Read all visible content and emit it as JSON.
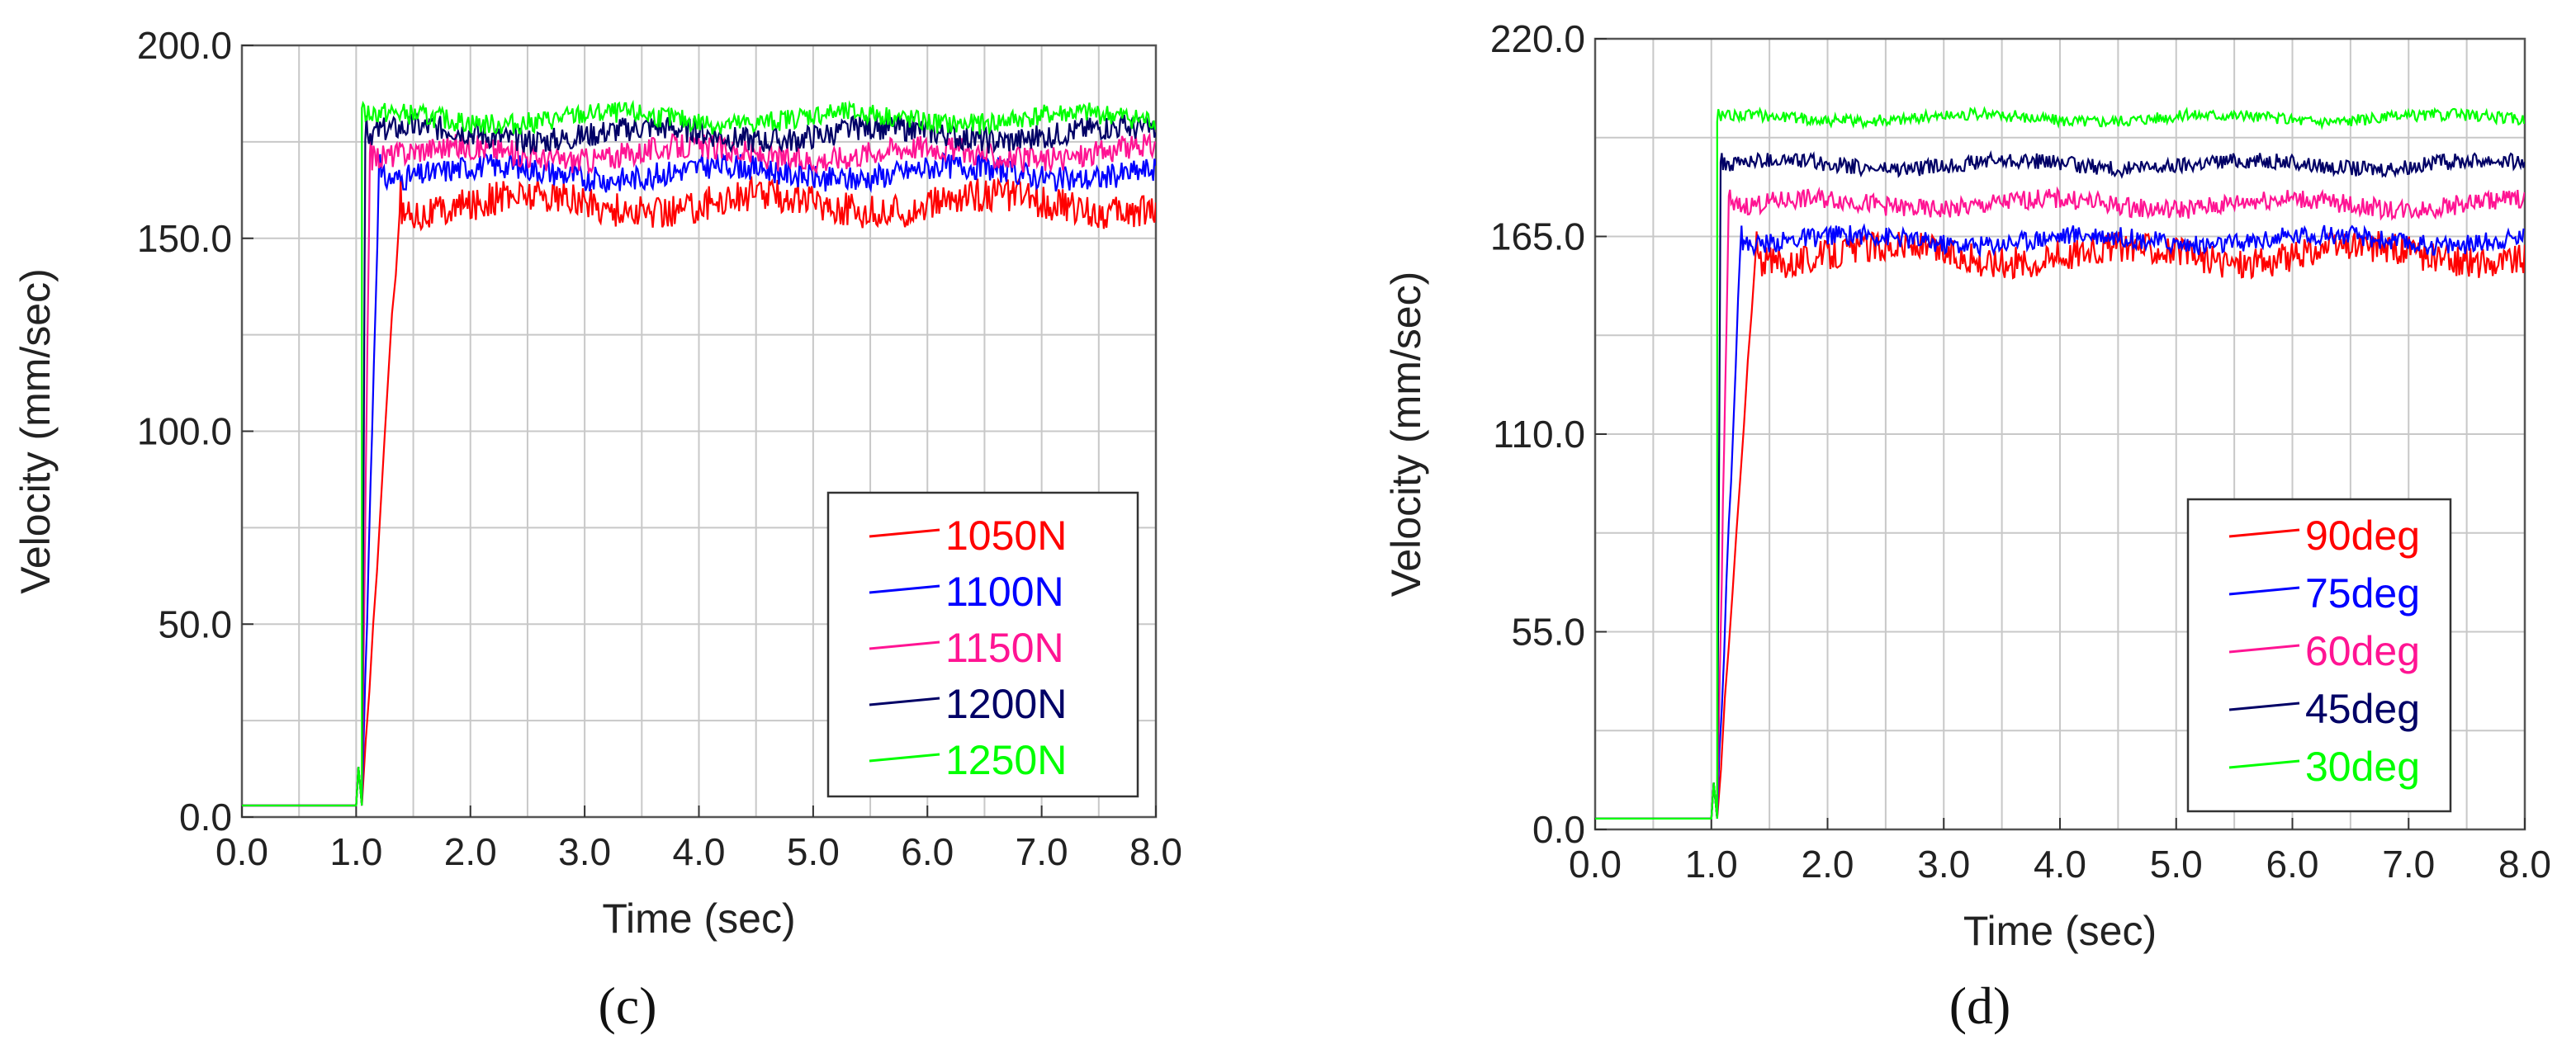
{
  "chart_data": [
    {
      "type": "line",
      "panel_label": "(c)",
      "title": "",
      "xlabel": "Time (sec)",
      "ylabel": "Velocity (mm/sec)",
      "xlim": [
        0,
        8
      ],
      "ylim": [
        0,
        200
      ],
      "xticks": [
        "0.0",
        "1.0",
        "2.0",
        "3.0",
        "4.0",
        "5.0",
        "6.0",
        "7.0",
        "8.0"
      ],
      "yticks": [
        "0.0",
        "50.0",
        "100.0",
        "150.0",
        "200.0"
      ],
      "grid": true,
      "legend_position": "bottom-right",
      "series": [
        {
          "name": "1050N",
          "color": "#ff0000",
          "start": 1.0,
          "rise_end": 1.38,
          "steady": 159,
          "noise": 4.0
        },
        {
          "name": "1100N",
          "color": "#0000ff",
          "start": 1.0,
          "rise_end": 1.2,
          "steady": 167,
          "noise": 3.0
        },
        {
          "name": "1150N",
          "color": "#ff1493",
          "start": 1.0,
          "rise_end": 1.12,
          "steady": 172,
          "noise": 3.0
        },
        {
          "name": "1200N",
          "color": "#000066",
          "start": 1.0,
          "rise_end": 1.08,
          "steady": 177,
          "noise": 3.0
        },
        {
          "name": "1250N",
          "color": "#00ff00",
          "start": 1.0,
          "rise_end": 1.05,
          "steady": 181,
          "noise": 2.5
        }
      ]
    },
    {
      "type": "line",
      "panel_label": "(d)",
      "title": "",
      "xlabel": "Time (sec)",
      "ylabel": "Velocity (mm/sec)",
      "xlim": [
        0,
        8
      ],
      "ylim": [
        0,
        220
      ],
      "xticks": [
        "0.0",
        "1.0",
        "2.0",
        "3.0",
        "4.0",
        "5.0",
        "6.0",
        "7.0",
        "8.0"
      ],
      "yticks": [
        "0.0",
        "55.0",
        "110.0",
        "165.0",
        "220.0"
      ],
      "grid": true,
      "legend_position": "bottom-right",
      "series": [
        {
          "name": "90deg",
          "color": "#ff0000",
          "start": 1.0,
          "rise_end": 1.38,
          "steady": 160,
          "noise": 4.0
        },
        {
          "name": "75deg",
          "color": "#0000ff",
          "start": 1.0,
          "rise_end": 1.25,
          "steady": 164,
          "noise": 2.5
        },
        {
          "name": "60deg",
          "color": "#ff1493",
          "start": 1.0,
          "rise_end": 1.15,
          "steady": 174,
          "noise": 2.5
        },
        {
          "name": "45deg",
          "color": "#000066",
          "start": 1.0,
          "rise_end": 1.08,
          "steady": 185,
          "noise": 2.0
        },
        {
          "name": "30deg",
          "color": "#00ff00",
          "start": 1.0,
          "rise_end": 1.05,
          "steady": 198,
          "noise": 1.5
        }
      ]
    }
  ]
}
